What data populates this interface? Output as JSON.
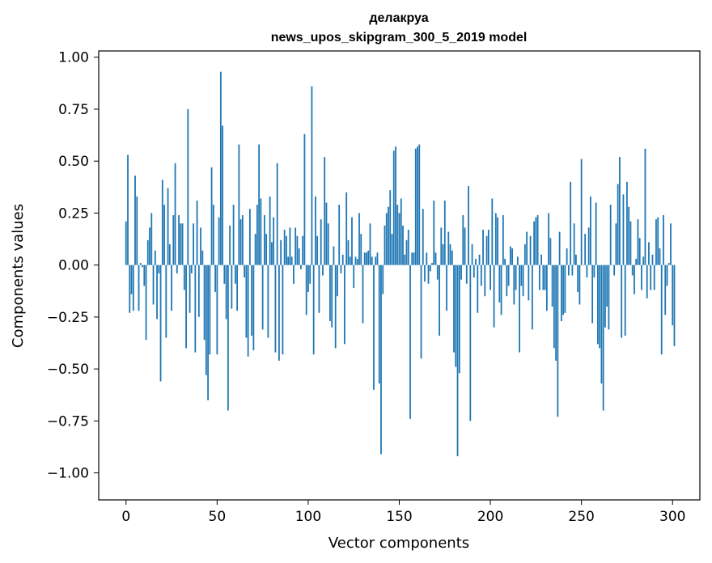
{
  "chart_data": {
    "type": "bar",
    "title_lines": [
      "делакруа",
      "news_upos_skipgram_300_5_2019 model"
    ],
    "xlabel": "Vector components",
    "ylabel": "Components values",
    "xlim": [
      -15,
      315
    ],
    "ylim": [
      -1.13,
      1.03
    ],
    "xticks": [
      0,
      50,
      100,
      150,
      200,
      250,
      300
    ],
    "yticks": [
      1.0,
      0.75,
      0.5,
      0.25,
      0.0,
      -0.25,
      -0.5,
      -0.75,
      -1.0
    ],
    "ytick_labels": [
      "1.00",
      "0.75",
      "0.50",
      "0.25",
      "0.00",
      "−0.25",
      "−0.50",
      "−0.75",
      "−1.00"
    ],
    "bar_color": "#1f77b4",
    "values": [
      0.21,
      0.53,
      -0.23,
      -0.14,
      -0.22,
      0.43,
      0.33,
      -0.22,
      0.01,
      -0.01,
      -0.1,
      -0.36,
      0.12,
      0.18,
      0.25,
      -0.19,
      0.07,
      -0.26,
      -0.04,
      -0.56,
      0.41,
      0.29,
      -0.35,
      0.37,
      0.1,
      -0.22,
      0.24,
      0.49,
      -0.04,
      0.24,
      0.2,
      0.2,
      -0.12,
      -0.4,
      0.75,
      -0.23,
      -0.04,
      0.2,
      -0.42,
      0.31,
      -0.25,
      0.18,
      0.07,
      -0.36,
      -0.53,
      -0.65,
      -0.43,
      0.47,
      0.29,
      -0.13,
      -0.43,
      0.23,
      0.93,
      0.67,
      -0.09,
      -0.26,
      -0.7,
      0.19,
      -0.21,
      0.29,
      -0.09,
      -0.22,
      0.58,
      0.22,
      0.24,
      -0.06,
      -0.35,
      -0.44,
      0.27,
      -0.34,
      -0.41,
      0.15,
      0.29,
      0.58,
      0.32,
      -0.31,
      0.24,
      0.15,
      -0.35,
      0.33,
      0.11,
      0.23,
      -0.42,
      0.49,
      -0.46,
      0.12,
      -0.43,
      0.17,
      0.14,
      0.04,
      0.18,
      0.04,
      -0.09,
      0.18,
      0.14,
      0.08,
      -0.02,
      0.14,
      0.63,
      -0.24,
      -0.13,
      -0.09,
      0.86,
      -0.43,
      0.33,
      0.14,
      -0.23,
      0.22,
      -0.05,
      0.52,
      0.3,
      0.2,
      -0.27,
      -0.3,
      0.09,
      -0.4,
      -0.15,
      0.29,
      -0.04,
      0.05,
      -0.38,
      0.35,
      0.12,
      0.04,
      0.23,
      -0.11,
      0.04,
      0.03,
      0.25,
      0.15,
      -0.28,
      0.06,
      0.06,
      0.07,
      0.2,
      0.04,
      -0.6,
      0.04,
      0.06,
      -0.57,
      -0.91,
      -0.14,
      0.19,
      0.25,
      0.28,
      0.36,
      0.15,
      0.55,
      0.57,
      0.29,
      0.25,
      0.32,
      0.19,
      0.05,
      0.12,
      0.17,
      -0.74,
      0.06,
      0.06,
      0.56,
      0.57,
      0.58,
      -0.45,
      0.27,
      -0.08,
      0.06,
      -0.09,
      -0.03,
      0.01,
      0.31,
      0.06,
      -0.07,
      -0.34,
      0.18,
      0.1,
      0.31,
      -0.22,
      0.16,
      0.1,
      0.07,
      -0.42,
      -0.49,
      -0.92,
      -0.52,
      -0.07,
      0.24,
      0.18,
      -0.09,
      0.38,
      -0.75,
      0.1,
      -0.06,
      0.03,
      -0.23,
      0.05,
      -0.1,
      0.17,
      -0.15,
      0.14,
      0.17,
      -0.12,
      0.32,
      -0.3,
      0.25,
      0.23,
      -0.18,
      -0.24,
      0.24,
      0.03,
      -0.15,
      -0.1,
      0.09,
      0.08,
      -0.19,
      -0.12,
      0.04,
      -0.42,
      -0.1,
      -0.15,
      0.1,
      0.16,
      -0.17,
      0.14,
      -0.31,
      0.21,
      0.23,
      0.24,
      -0.12,
      0.05,
      -0.12,
      -0.12,
      -0.22,
      0.25,
      0.13,
      -0.2,
      -0.4,
      -0.46,
      -0.73,
      0.16,
      -0.27,
      -0.24,
      -0.23,
      0.08,
      -0.05,
      0.4,
      -0.05,
      0.2,
      0.05,
      -0.13,
      -0.19,
      0.51,
      0.0,
      0.15,
      -0.06,
      0.18,
      0.33,
      -0.28,
      -0.06,
      0.3,
      -0.38,
      -0.4,
      -0.57,
      -0.7,
      -0.3,
      -0.2,
      -0.31,
      0.29,
      0.0,
      -0.05,
      0.2,
      0.39,
      0.52,
      -0.35,
      0.34,
      -0.34,
      0.4,
      0.28,
      0.21,
      -0.05,
      -0.14,
      0.03,
      0.22,
      0.13,
      -0.12,
      0.04,
      0.56,
      -0.16,
      0.11,
      -0.12,
      0.05,
      -0.12,
      0.22,
      0.23,
      0.08,
      -0.43,
      0.24,
      -0.24,
      -0.1,
      0.01,
      0.2,
      -0.29,
      -0.39
    ]
  }
}
